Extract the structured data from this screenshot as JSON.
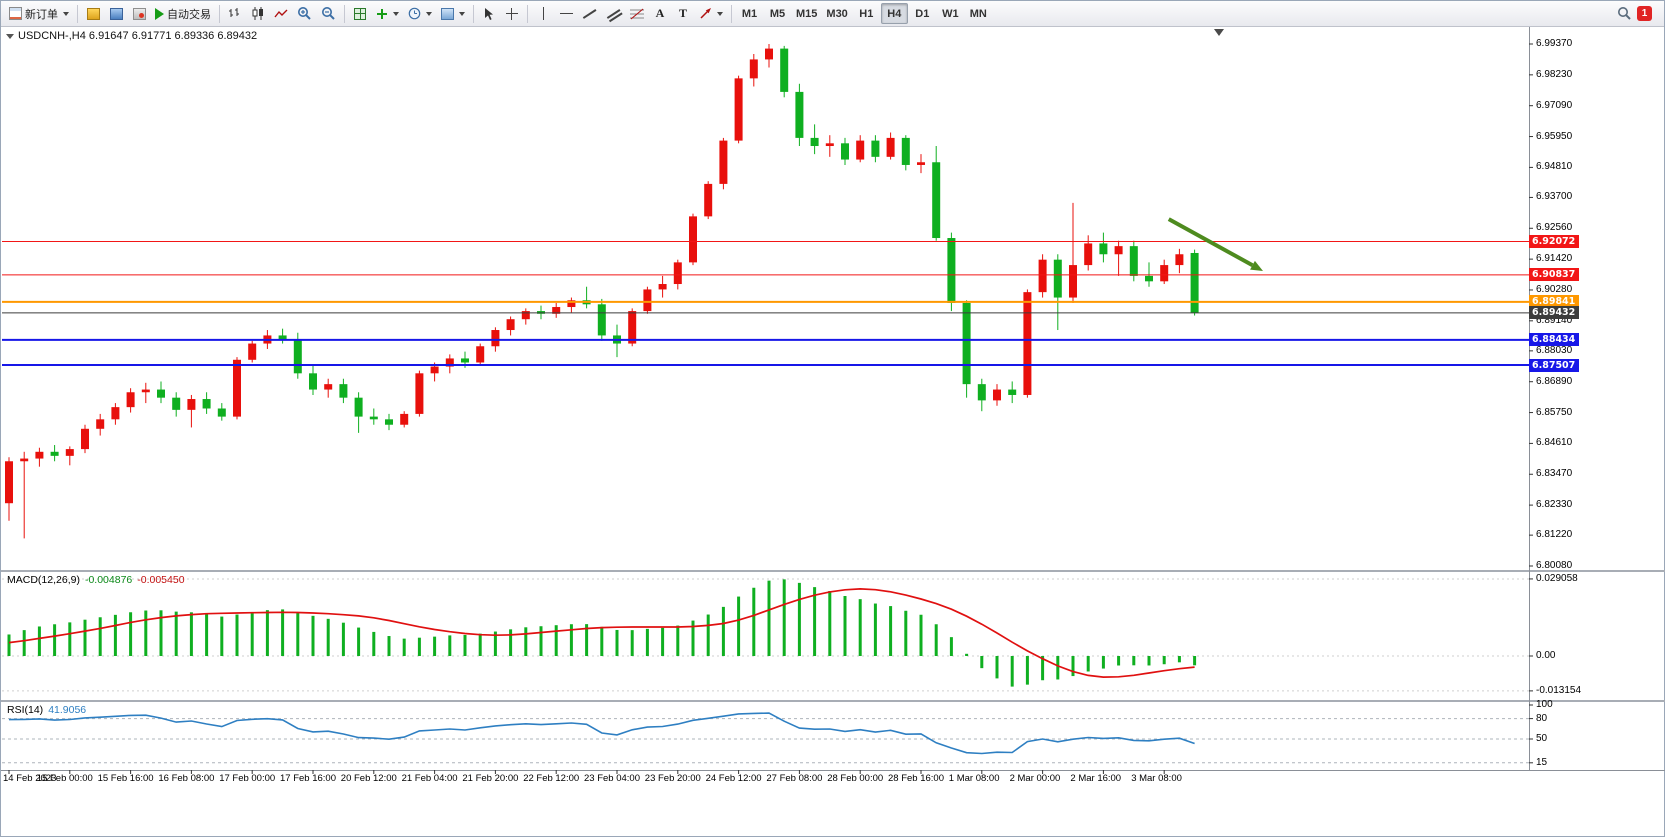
{
  "toolbar": {
    "new_order_label": "新订单",
    "autotrading_label": "自动交易",
    "timeframes": [
      "M1",
      "M5",
      "M15",
      "M30",
      "H1",
      "H4",
      "D1",
      "W1",
      "MN"
    ],
    "active_timeframe": "H4",
    "notification_count": "1"
  },
  "chart_data": {
    "type": "candlestick",
    "header": "USDCNH-,H4 6.91647 6.91771 6.89336 6.89432",
    "symbol": "USDCNH-",
    "period": "H4",
    "ohlc": {
      "open": "6.91647",
      "high": "6.91771",
      "low": "6.89336",
      "close": "6.89432"
    },
    "up_color": "#e8100c",
    "down_color": "#0faf20",
    "price_axis": {
      "ticks": [
        "6.99370",
        "6.98230",
        "6.97090",
        "6.95950",
        "6.94810",
        "6.93700",
        "6.92560",
        "6.91420",
        "6.90280",
        "6.89140",
        "6.88030",
        "6.86890",
        "6.85750",
        "6.84610",
        "6.83470",
        "6.82330",
        "6.81220",
        "6.80080"
      ]
    },
    "time_labels": [
      "14 Feb 2023",
      "15 Feb 00:00",
      "15 Feb 16:00",
      "16 Feb 08:00",
      "17 Feb 00:00",
      "17 Feb 16:00",
      "20 Feb 12:00",
      "21 Feb 04:00",
      "21 Feb 20:00",
      "22 Feb 12:00",
      "23 Feb 04:00",
      "23 Feb 20:00",
      "24 Feb 12:00",
      "27 Feb 08:00",
      "28 Feb 00:00",
      "28 Feb 16:00",
      "1 Mar 08:00",
      "2 Mar 00:00",
      "2 Mar 16:00",
      "3 Mar 08:00"
    ],
    "candles": [
      [
        6.824,
        6.841,
        6.8175,
        6.8395
      ],
      [
        6.8395,
        6.843,
        6.811,
        6.8405
      ],
      [
        6.8405,
        6.8445,
        6.8375,
        6.843
      ],
      [
        6.843,
        6.8455,
        6.8395,
        6.8415
      ],
      [
        6.8415,
        6.845,
        6.838,
        6.844
      ],
      [
        6.844,
        6.853,
        6.8425,
        6.8515
      ],
      [
        6.8515,
        6.857,
        6.849,
        6.855
      ],
      [
        6.855,
        6.861,
        6.853,
        6.8595
      ],
      [
        6.8595,
        6.8665,
        6.8575,
        6.865
      ],
      [
        6.865,
        6.8685,
        6.861,
        6.866
      ],
      [
        6.866,
        6.869,
        6.861,
        6.863
      ],
      [
        6.863,
        6.865,
        6.856,
        6.8585
      ],
      [
        6.8585,
        6.864,
        6.852,
        6.8625
      ],
      [
        6.8625,
        6.865,
        6.857,
        6.859
      ],
      [
        6.859,
        6.861,
        6.8545,
        6.856
      ],
      [
        6.856,
        6.878,
        6.855,
        6.877
      ],
      [
        6.877,
        6.884,
        6.876,
        6.883
      ],
      [
        6.883,
        6.888,
        6.881,
        6.886
      ],
      [
        6.886,
        6.8885,
        6.883,
        6.8845
      ],
      [
        6.8845,
        6.887,
        6.87,
        6.872
      ],
      [
        6.872,
        6.875,
        6.864,
        6.866
      ],
      [
        6.866,
        6.87,
        6.863,
        6.868
      ],
      [
        6.868,
        6.87,
        6.861,
        6.863
      ],
      [
        6.863,
        6.865,
        6.85,
        6.856
      ],
      [
        6.856,
        6.859,
        6.853,
        6.855
      ],
      [
        6.855,
        6.857,
        6.851,
        6.853
      ],
      [
        6.853,
        6.858,
        6.852,
        6.857
      ],
      [
        6.857,
        6.873,
        6.856,
        6.872
      ],
      [
        6.872,
        6.876,
        6.869,
        6.8745
      ],
      [
        6.8745,
        6.879,
        6.872,
        6.8775
      ],
      [
        6.8775,
        6.88,
        6.874,
        6.876
      ],
      [
        6.876,
        6.883,
        6.875,
        6.882
      ],
      [
        6.882,
        6.889,
        6.88,
        6.888
      ],
      [
        6.888,
        6.893,
        6.886,
        6.892
      ],
      [
        6.892,
        6.896,
        6.89,
        6.895
      ],
      [
        6.895,
        6.897,
        6.892,
        6.894
      ],
      [
        6.894,
        6.898,
        6.8925,
        6.8965
      ],
      [
        6.8965,
        6.9,
        6.8945,
        6.899
      ],
      [
        6.899,
        6.904,
        6.896,
        6.8975
      ],
      [
        6.8975,
        6.8995,
        6.884,
        6.886
      ],
      [
        6.886,
        6.89,
        6.878,
        6.883
      ],
      [
        6.883,
        6.896,
        6.882,
        6.895
      ],
      [
        6.895,
        6.904,
        6.894,
        6.903
      ],
      [
        6.903,
        6.908,
        6.9,
        6.905
      ],
      [
        6.905,
        6.914,
        6.903,
        6.913
      ],
      [
        6.913,
        6.931,
        6.912,
        6.93
      ],
      [
        6.93,
        6.943,
        6.929,
        6.942
      ],
      [
        6.942,
        6.959,
        6.94,
        6.958
      ],
      [
        6.958,
        6.982,
        6.957,
        6.981
      ],
      [
        6.981,
        6.99,
        6.978,
        6.988
      ],
      [
        6.988,
        6.9937,
        6.985,
        6.992
      ],
      [
        6.992,
        6.993,
        6.974,
        6.976
      ],
      [
        6.976,
        6.979,
        6.956,
        6.959
      ],
      [
        6.959,
        6.964,
        6.953,
        6.956
      ],
      [
        6.956,
        6.96,
        6.952,
        6.957
      ],
      [
        6.957,
        6.959,
        6.949,
        6.951
      ],
      [
        6.951,
        6.96,
        6.95,
        6.958
      ],
      [
        6.958,
        6.96,
        6.95,
        6.952
      ],
      [
        6.952,
        6.961,
        6.951,
        6.959
      ],
      [
        6.959,
        6.96,
        6.947,
        6.949
      ],
      [
        6.949,
        6.953,
        6.946,
        6.95
      ],
      [
        6.95,
        6.956,
        6.921,
        6.922
      ],
      [
        6.922,
        6.924,
        6.895,
        6.898
      ],
      [
        6.898,
        6.899,
        6.863,
        6.868
      ],
      [
        6.868,
        6.87,
        6.858,
        6.862
      ],
      [
        6.862,
        6.868,
        6.86,
        6.866
      ],
      [
        6.866,
        6.869,
        6.861,
        6.864
      ],
      [
        6.864,
        6.903,
        6.863,
        6.902
      ],
      [
        6.902,
        6.916,
        6.9,
        6.914
      ],
      [
        6.914,
        6.916,
        6.888,
        6.9
      ],
      [
        6.9,
        6.935,
        6.898,
        6.912
      ],
      [
        6.912,
        6.923,
        6.91,
        6.92
      ],
      [
        6.92,
        6.924,
        6.913,
        6.916
      ],
      [
        6.916,
        6.921,
        6.908,
        6.919
      ],
      [
        6.919,
        6.921,
        6.906,
        6.908
      ],
      [
        6.908,
        6.913,
        6.904,
        6.906
      ],
      [
        6.906,
        6.914,
        6.905,
        6.912
      ],
      [
        6.912,
        6.918,
        6.909,
        6.916
      ],
      [
        6.91647,
        6.91771,
        6.89336,
        6.89432
      ]
    ],
    "hlines": [
      {
        "price": 6.92072,
        "label": "6.92072",
        "color": "#f21616",
        "width": 1
      },
      {
        "price": 6.90837,
        "label": "6.90837",
        "color": "#f21616",
        "width": 1
      },
      {
        "price": 6.89841,
        "label": "6.89841",
        "color": "#ff9800",
        "width": 2
      },
      {
        "price": 6.89432,
        "label": "6.89432",
        "color": "#3c3c3c",
        "width": 1
      },
      {
        "price": 6.88434,
        "label": "6.88434",
        "color": "#1717e8",
        "width": 2
      },
      {
        "price": 6.87507,
        "label": "6.87507",
        "color": "#1717e8",
        "width": 2
      }
    ],
    "arrow": {
      "from_bar": 76.3,
      "from_price": 6.929,
      "to_bar": 82.5,
      "to_price": 6.9098,
      "color": "#4e8b1f"
    },
    "macd": {
      "label": "MACD(12,26,9)",
      "value": "-0.004876",
      "signal_value": "-0.005450",
      "histogram_color": "#0faf20",
      "signal_color": "#e01010",
      "axis_ticks": [
        "0.029058",
        "0.00",
        "-0.013154"
      ]
    },
    "rsi": {
      "label": "RSI(14)",
      "value": "41.9056",
      "period": 14,
      "line_color": "#2e7fc2",
      "levels": [
        80,
        50,
        15
      ],
      "axis_ticks": [
        "100",
        "80",
        "50",
        "15"
      ]
    }
  }
}
